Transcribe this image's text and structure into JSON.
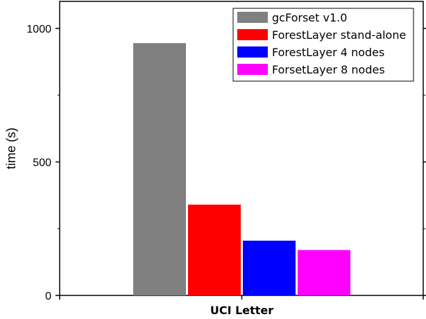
{
  "chart_data": {
    "type": "bar",
    "title": "",
    "xlabel": "",
    "ylabel": "time (s)",
    "categories": [
      "UCI Letter"
    ],
    "ylim": [
      0,
      1000
    ],
    "yticks": [
      0,
      500,
      1000
    ],
    "grid": false,
    "legend_position": "top-right",
    "series": [
      {
        "name": "gcForset v1.0",
        "color": "#808080",
        "values": [
          945
        ]
      },
      {
        "name": "ForestLayer stand-alone",
        "color": "#ff0000",
        "values": [
          340
        ]
      },
      {
        "name": "ForestLayer 4 nodes",
        "color": "#0000ff",
        "values": [
          205
        ]
      },
      {
        "name": "ForsetLayer 8 nodes",
        "color": "#ff00ff",
        "values": [
          170
        ]
      }
    ]
  }
}
